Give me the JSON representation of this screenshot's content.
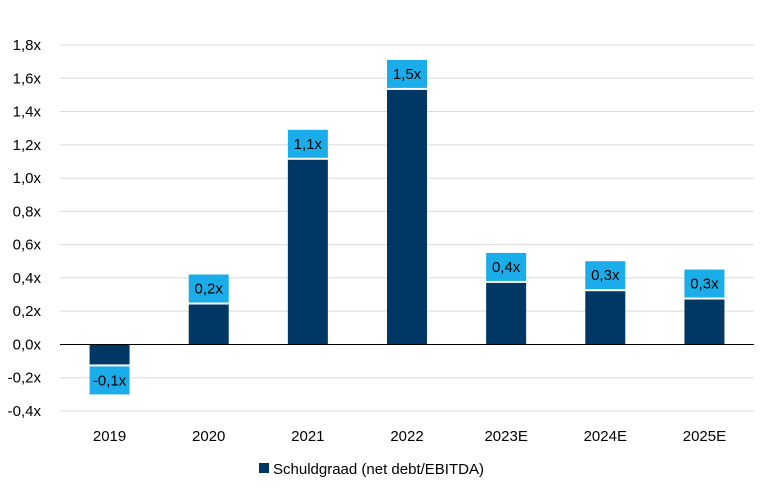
{
  "chart_data": {
    "type": "bar",
    "categories": [
      "2019",
      "2020",
      "2021",
      "2022",
      "2023E",
      "2024E",
      "2025E"
    ],
    "series": [
      {
        "name": "Schuldgraad (net debt/EBITDA)",
        "values": [
          -0.12,
          0.24,
          1.11,
          1.53,
          0.37,
          0.32,
          0.27
        ],
        "data_labels": [
          "-0,1x",
          "0,2x",
          "1,1x",
          "1,5x",
          "0,4x",
          "0,3x",
          "0,3x"
        ]
      }
    ],
    "y_ticks": [
      -0.4,
      -0.2,
      0.0,
      0.2,
      0.4,
      0.6,
      0.8,
      1.0,
      1.2,
      1.4,
      1.6,
      1.8
    ],
    "y_tick_labels": [
      "-0,4x",
      "-0,2x",
      "0,0x",
      "0,2x",
      "0,4x",
      "0,6x",
      "0,8x",
      "1,0x",
      "1,2x",
      "1,4x",
      "1,6x",
      "1,8x"
    ],
    "ylim": [
      -0.4,
      1.8
    ],
    "grid": true,
    "legend_position": "bottom",
    "colors": {
      "bar": "#003764",
      "label_box": "#1AADE9",
      "grid": "#d9d9d9",
      "axis": "#000000"
    }
  }
}
